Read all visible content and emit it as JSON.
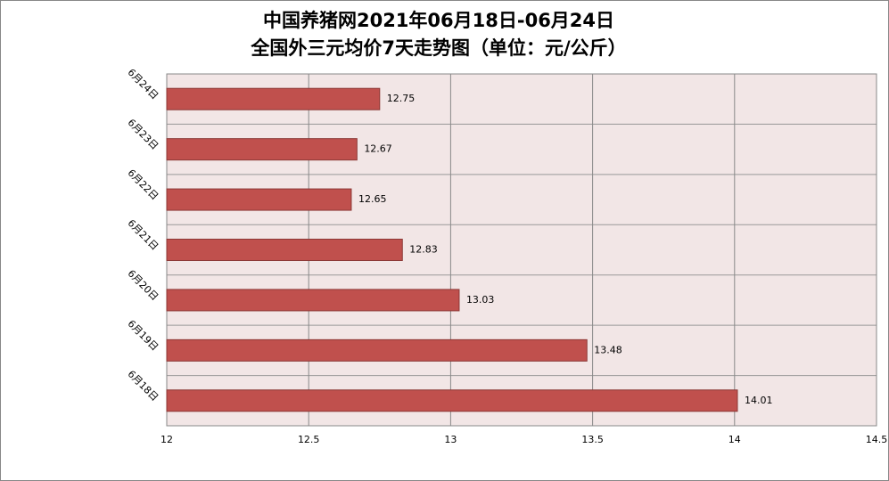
{
  "chart_data": {
    "type": "barh",
    "title": "中国养猪网2021年06月18日-06月24日",
    "subtitle": "全国外三元均价7天走势图（单位：元/公斤）",
    "categories": [
      "6月18日",
      "6月19日",
      "6月20日",
      "6月21日",
      "6月22日",
      "6月23日",
      "6月24日"
    ],
    "values": [
      14.01,
      13.48,
      13.03,
      12.83,
      12.65,
      12.67,
      12.75
    ],
    "color": "#c0504d",
    "xlim": [
      12,
      14.5
    ],
    "xticks": [
      12,
      12.5,
      13,
      13.5,
      14,
      14.5
    ],
    "grid": true
  }
}
